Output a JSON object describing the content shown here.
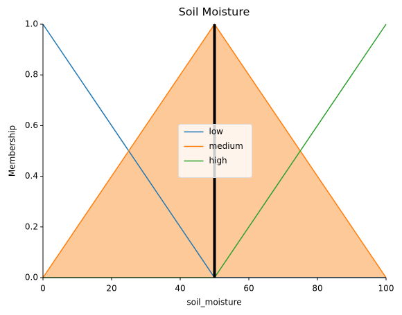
{
  "chart_data": {
    "type": "line",
    "title": "Soil Moisture",
    "x_label": "soil_moisture",
    "y_label": "Membership",
    "x": [
      0,
      50,
      100
    ],
    "series": [
      {
        "name": "low",
        "color": "#1f77b4",
        "values": [
          1,
          0,
          0
        ]
      },
      {
        "name": "medium",
        "color": "#ff7f0e",
        "fill_color": "#fec999",
        "values": [
          0,
          1,
          0
        ]
      },
      {
        "name": "high",
        "color": "#2ca02c",
        "values": [
          0,
          0,
          1
        ]
      }
    ],
    "marker_line": {
      "x": 50,
      "y": [
        0,
        1
      ],
      "color": "#000000"
    },
    "xlim": [
      0,
      100
    ],
    "xticks": [
      0,
      20,
      40,
      60,
      80,
      100
    ],
    "ylim": [
      0,
      1
    ],
    "yticks": [
      {
        "value": 0,
        "label": "0.0"
      },
      {
        "value": 0.2,
        "label": "0.2"
      },
      {
        "value": 0.4,
        "label": "0.4"
      },
      {
        "value": 0.6,
        "label": "0.6"
      },
      {
        "value": 0.8,
        "label": "0.8"
      },
      {
        "value": 1,
        "label": "1.0"
      }
    ],
    "legend": "center",
    "grid": false
  }
}
